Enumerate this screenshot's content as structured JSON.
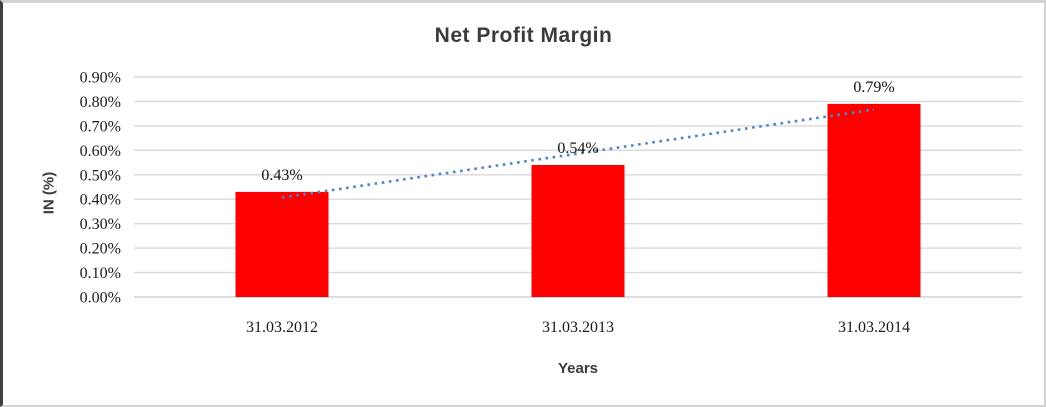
{
  "chart_data": {
    "type": "bar",
    "title": "Net Profit Margin",
    "xlabel": "Years",
    "ylabel": "IN (%)",
    "categories": [
      "31.03.2012",
      "31.03.2013",
      "31.03.2014"
    ],
    "values": [
      0.43,
      0.54,
      0.79
    ],
    "data_labels": [
      "0.43%",
      "0.54%",
      "0.79%"
    ],
    "y_ticks": [
      "0.00%",
      "0.10%",
      "0.20%",
      "0.30%",
      "0.40%",
      "0.50%",
      "0.60%",
      "0.70%",
      "0.80%",
      "0.90%"
    ],
    "ylim": [
      0,
      0.9
    ],
    "grid": "horizontal",
    "legend": "none",
    "series_name": "Net Profit Margin",
    "trendline": {
      "type": "linear",
      "style": "dotted",
      "endpoint_values": [
        0.407,
        0.767
      ],
      "color": "#4d85c6"
    },
    "colors": {
      "bar": "#ff0000",
      "gridline": "#d9d9d9",
      "axis_line": "#d2d2d2",
      "tick_text": "#1a1a1a",
      "data_label_text": "#111111",
      "title_text": "#3b3b3b"
    }
  }
}
